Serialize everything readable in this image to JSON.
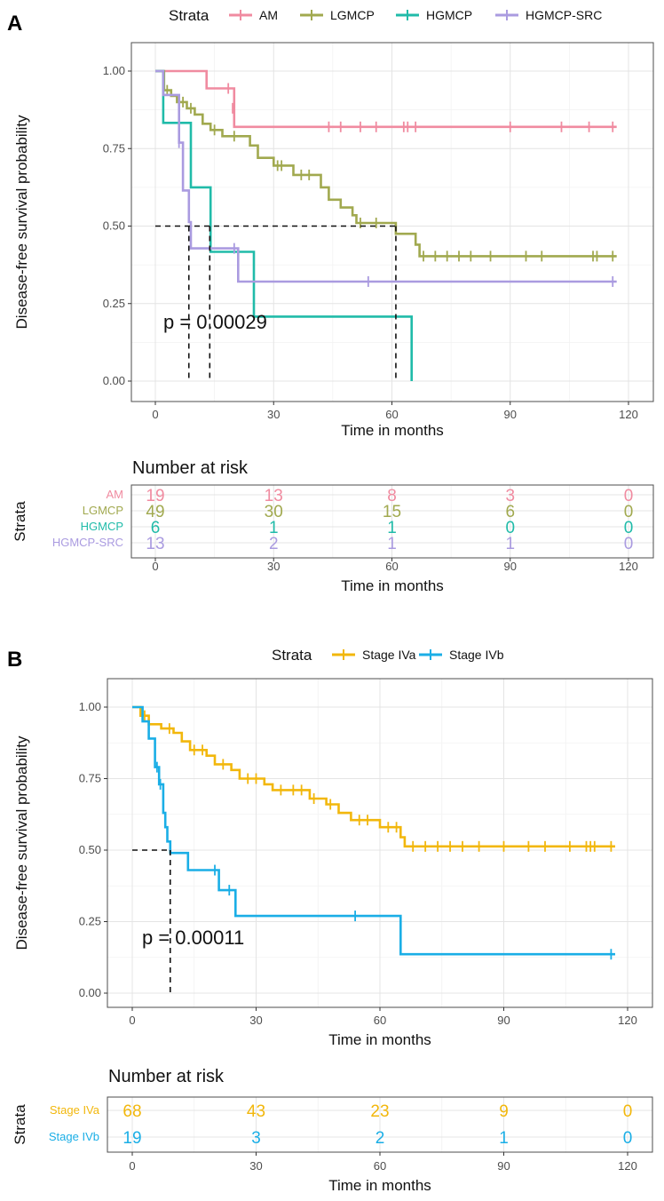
{
  "panels": [
    {
      "letter": "A",
      "legend_title": "Strata",
      "x_label": "Time in months",
      "y_label": "Disease-free survival probability",
      "x_ticks": [
        0,
        30,
        60,
        90,
        120
      ],
      "y_ticks": [
        "0.00",
        "0.25",
        "0.50",
        "0.75",
        "1.00"
      ],
      "p_value": "p = 0.00029",
      "risk_title": "Number at risk",
      "risk_y_label": "Strata",
      "risk_x_label": "Time in months"
    },
    {
      "letter": "B",
      "legend_title": "Strata",
      "x_label": "Time in months",
      "y_label": "Disease-free survival probability",
      "x_ticks": [
        0,
        30,
        60,
        90,
        120
      ],
      "y_ticks": [
        "0.00",
        "0.25",
        "0.50",
        "0.75",
        "1.00"
      ],
      "p_value": "p = 0.00011",
      "risk_title": "Number at risk",
      "risk_y_label": "Strata",
      "risk_x_label": "Time in months"
    }
  ],
  "chart_data": [
    {
      "type": "line",
      "subtype": "kaplan-meier",
      "title": "A",
      "xlabel": "Time in months",
      "ylabel": "Disease-free survival probability",
      "xlim": [
        0,
        120
      ],
      "ylim": [
        0,
        1
      ],
      "x_ticks": [
        0,
        30,
        60,
        90,
        120
      ],
      "y_ticks": [
        0,
        0.25,
        0.5,
        0.75,
        1
      ],
      "grid": true,
      "legend_title": "Strata",
      "legend_position": "top",
      "p_value": "p = 0.00029",
      "median_line_y": 0.5,
      "median_times": [
        8.5,
        13.8,
        61
      ],
      "series": [
        {
          "name": "AM",
          "color": "#f08ba0",
          "steps": [
            [
              0,
              1.0
            ],
            [
              13,
              1.0
            ],
            [
              13,
              0.944
            ],
            [
              20,
              0.944
            ],
            [
              20,
              0.82
            ],
            [
              117,
              0.82
            ]
          ],
          "censors": [
            [
              18.5,
              0.944
            ],
            [
              19.6,
              0.88
            ],
            [
              44,
              0.82
            ],
            [
              47,
              0.82
            ],
            [
              52,
              0.82
            ],
            [
              56,
              0.82
            ],
            [
              63,
              0.82
            ],
            [
              64,
              0.82
            ],
            [
              66,
              0.82
            ],
            [
              90,
              0.82
            ],
            [
              103,
              0.82
            ],
            [
              110,
              0.82
            ],
            [
              116,
              0.82
            ]
          ],
          "end": 117
        },
        {
          "name": "LGMCP",
          "color": "#a1a94f",
          "steps": [
            [
              0,
              1.0
            ],
            [
              2.2,
              1.0
            ],
            [
              2.2,
              0.938
            ],
            [
              4,
              0.938
            ],
            [
              4,
              0.92
            ],
            [
              5.5,
              0.92
            ],
            [
              5.5,
              0.9
            ],
            [
              8,
              0.9
            ],
            [
              8,
              0.88
            ],
            [
              10,
              0.88
            ],
            [
              10,
              0.86
            ],
            [
              12,
              0.86
            ],
            [
              12,
              0.83
            ],
            [
              14,
              0.83
            ],
            [
              14,
              0.81
            ],
            [
              17,
              0.81
            ],
            [
              17,
              0.79
            ],
            [
              24,
              0.79
            ],
            [
              24,
              0.76
            ],
            [
              26,
              0.76
            ],
            [
              26,
              0.72
            ],
            [
              30,
              0.72
            ],
            [
              30,
              0.695
            ],
            [
              35,
              0.695
            ],
            [
              35,
              0.665
            ],
            [
              42,
              0.665
            ],
            [
              42,
              0.625
            ],
            [
              44,
              0.625
            ],
            [
              44,
              0.585
            ],
            [
              47,
              0.585
            ],
            [
              47,
              0.56
            ],
            [
              50,
              0.56
            ],
            [
              50,
              0.535
            ],
            [
              51,
              0.535
            ],
            [
              51,
              0.51
            ],
            [
              61,
              0.51
            ],
            [
              61,
              0.475
            ],
            [
              66,
              0.475
            ],
            [
              66,
              0.44
            ],
            [
              67,
              0.44
            ],
            [
              67,
              0.403
            ],
            [
              117,
              0.403
            ]
          ],
          "censors": [
            [
              3,
              0.938
            ],
            [
              7,
              0.9
            ],
            [
              9,
              0.88
            ],
            [
              15,
              0.81
            ],
            [
              20,
              0.79
            ],
            [
              31,
              0.695
            ],
            [
              32,
              0.695
            ],
            [
              37,
              0.665
            ],
            [
              39,
              0.665
            ],
            [
              52,
              0.51
            ],
            [
              56,
              0.51
            ],
            [
              68,
              0.403
            ],
            [
              71,
              0.403
            ],
            [
              74,
              0.403
            ],
            [
              77,
              0.403
            ],
            [
              80,
              0.403
            ],
            [
              85,
              0.403
            ],
            [
              94,
              0.403
            ],
            [
              98,
              0.403
            ],
            [
              111,
              0.403
            ],
            [
              112,
              0.403
            ],
            [
              116,
              0.403
            ]
          ],
          "end": 117
        },
        {
          "name": "HGMCP",
          "color": "#20bba9",
          "steps": [
            [
              0,
              1.0
            ],
            [
              2,
              1.0
            ],
            [
              2,
              0.833
            ],
            [
              9,
              0.833
            ],
            [
              9,
              0.625
            ],
            [
              14,
              0.625
            ],
            [
              14,
              0.417
            ],
            [
              25,
              0.417
            ],
            [
              25,
              0.208
            ],
            [
              65,
              0.208
            ],
            [
              65,
              0.0
            ]
          ],
          "censors": [],
          "end": 65
        },
        {
          "name": "HGMCP-SRC",
          "color": "#aa9be0",
          "steps": [
            [
              0,
              1.0
            ],
            [
              2,
              1.0
            ],
            [
              2,
              0.923
            ],
            [
              6,
              0.923
            ],
            [
              6,
              0.769
            ],
            [
              7,
              0.769
            ],
            [
              7,
              0.615
            ],
            [
              8.5,
              0.615
            ],
            [
              8.5,
              0.513
            ],
            [
              9,
              0.513
            ],
            [
              9,
              0.428
            ],
            [
              21,
              0.428
            ],
            [
              21,
              0.321
            ],
            [
              117,
              0.321
            ]
          ],
          "censors": [
            [
              6,
              0.769
            ],
            [
              20,
              0.428
            ],
            [
              54,
              0.321
            ],
            [
              116,
              0.321
            ]
          ],
          "end": 117
        }
      ],
      "risk_table": {
        "title": "Number at risk",
        "ylabel": "Strata",
        "xlabel": "Time in months",
        "times": [
          0,
          30,
          60,
          90,
          120
        ],
        "rows": [
          {
            "name": "AM",
            "color": "#f08ba0",
            "values": [
              "19",
              "13",
              "8",
              "3",
              "0"
            ]
          },
          {
            "name": "LGMCP",
            "color": "#a1a94f",
            "values": [
              "49",
              "30",
              "15",
              "6",
              "0"
            ]
          },
          {
            "name": "HGMCP",
            "color": "#20bba9",
            "values": [
              "6",
              "1",
              "1",
              "0",
              "0"
            ]
          },
          {
            "name": "HGMCP-SRC",
            "color": "#aa9be0",
            "values": [
              "13",
              "2",
              "1",
              "1",
              "0"
            ]
          }
        ]
      }
    },
    {
      "type": "line",
      "subtype": "kaplan-meier",
      "title": "B",
      "xlabel": "Time in months",
      "ylabel": "Disease-free survival probability",
      "xlim": [
        0,
        120
      ],
      "ylim": [
        0,
        1
      ],
      "x_ticks": [
        0,
        30,
        60,
        90,
        120
      ],
      "y_ticks": [
        0,
        0.25,
        0.5,
        0.75,
        1
      ],
      "grid": true,
      "legend_title": "Strata",
      "legend_position": "top",
      "p_value": "p = 0.00011",
      "median_line_y": 0.5,
      "median_times": [
        9.2
      ],
      "series": [
        {
          "name": "Stage IVa",
          "color": "#f2b70c",
          "steps": [
            [
              0,
              1.0
            ],
            [
              2,
              1.0
            ],
            [
              2,
              0.97
            ],
            [
              4,
              0.97
            ],
            [
              4,
              0.94
            ],
            [
              7,
              0.94
            ],
            [
              7,
              0.925
            ],
            [
              10,
              0.925
            ],
            [
              10,
              0.91
            ],
            [
              12,
              0.91
            ],
            [
              12,
              0.88
            ],
            [
              14,
              0.88
            ],
            [
              14,
              0.85
            ],
            [
              18,
              0.85
            ],
            [
              18,
              0.83
            ],
            [
              20,
              0.83
            ],
            [
              20,
              0.8
            ],
            [
              24,
              0.8
            ],
            [
              24,
              0.78
            ],
            [
              26,
              0.78
            ],
            [
              26,
              0.75
            ],
            [
              32,
              0.75
            ],
            [
              32,
              0.73
            ],
            [
              34,
              0.73
            ],
            [
              34,
              0.71
            ],
            [
              43,
              0.71
            ],
            [
              43,
              0.68
            ],
            [
              47,
              0.68
            ],
            [
              47,
              0.66
            ],
            [
              50,
              0.66
            ],
            [
              50,
              0.63
            ],
            [
              53,
              0.63
            ],
            [
              53,
              0.605
            ],
            [
              60,
              0.605
            ],
            [
              60,
              0.58
            ],
            [
              65,
              0.58
            ],
            [
              65,
              0.545
            ],
            [
              66,
              0.545
            ],
            [
              66,
              0.513
            ],
            [
              117,
              0.513
            ]
          ],
          "censors": [
            [
              3,
              0.97
            ],
            [
              9,
              0.925
            ],
            [
              15,
              0.85
            ],
            [
              17,
              0.85
            ],
            [
              22,
              0.8
            ],
            [
              28,
              0.75
            ],
            [
              30,
              0.75
            ],
            [
              36,
              0.71
            ],
            [
              39,
              0.71
            ],
            [
              41,
              0.71
            ],
            [
              44,
              0.68
            ],
            [
              48,
              0.66
            ],
            [
              55,
              0.605
            ],
            [
              57,
              0.605
            ],
            [
              62,
              0.58
            ],
            [
              64,
              0.58
            ],
            [
              68,
              0.513
            ],
            [
              71,
              0.513
            ],
            [
              74,
              0.513
            ],
            [
              77,
              0.513
            ],
            [
              80,
              0.513
            ],
            [
              84,
              0.513
            ],
            [
              90,
              0.513
            ],
            [
              96,
              0.513
            ],
            [
              100,
              0.513
            ],
            [
              106,
              0.513
            ],
            [
              110,
              0.513
            ],
            [
              111,
              0.513
            ],
            [
              112,
              0.513
            ],
            [
              116,
              0.513
            ]
          ],
          "end": 117
        },
        {
          "name": "Stage IVb",
          "color": "#1aaee6",
          "steps": [
            [
              0,
              1.0
            ],
            [
              2.5,
              1.0
            ],
            [
              2.5,
              0.95
            ],
            [
              4,
              0.95
            ],
            [
              4,
              0.89
            ],
            [
              5.5,
              0.89
            ],
            [
              5.5,
              0.79
            ],
            [
              6.5,
              0.79
            ],
            [
              6.5,
              0.73
            ],
            [
              7.5,
              0.73
            ],
            [
              7.5,
              0.63
            ],
            [
              8,
              0.63
            ],
            [
              8,
              0.58
            ],
            [
              8.5,
              0.58
            ],
            [
              8.5,
              0.53
            ],
            [
              9.2,
              0.53
            ],
            [
              9.2,
              0.49
            ],
            [
              13.5,
              0.49
            ],
            [
              13.5,
              0.43
            ],
            [
              21,
              0.43
            ],
            [
              21,
              0.36
            ],
            [
              25,
              0.36
            ],
            [
              25,
              0.27
            ],
            [
              65,
              0.27
            ],
            [
              65,
              0.136
            ],
            [
              117,
              0.136
            ]
          ],
          "censors": [
            [
              6,
              0.79
            ],
            [
              6.8,
              0.73
            ],
            [
              20,
              0.43
            ],
            [
              23.5,
              0.36
            ],
            [
              54,
              0.27
            ],
            [
              116,
              0.136
            ]
          ],
          "end": 117
        }
      ],
      "risk_table": {
        "title": "Number at risk",
        "ylabel": "Strata",
        "xlabel": "Time in months",
        "times": [
          0,
          30,
          60,
          90,
          120
        ],
        "rows": [
          {
            "name": "Stage IVa",
            "color": "#f2b70c",
            "values": [
              "68",
              "43",
              "23",
              "9",
              "0"
            ]
          },
          {
            "name": "Stage IVb",
            "color": "#1aaee6",
            "values": [
              "19",
              "3",
              "2",
              "1",
              "0"
            ]
          }
        ]
      }
    }
  ]
}
